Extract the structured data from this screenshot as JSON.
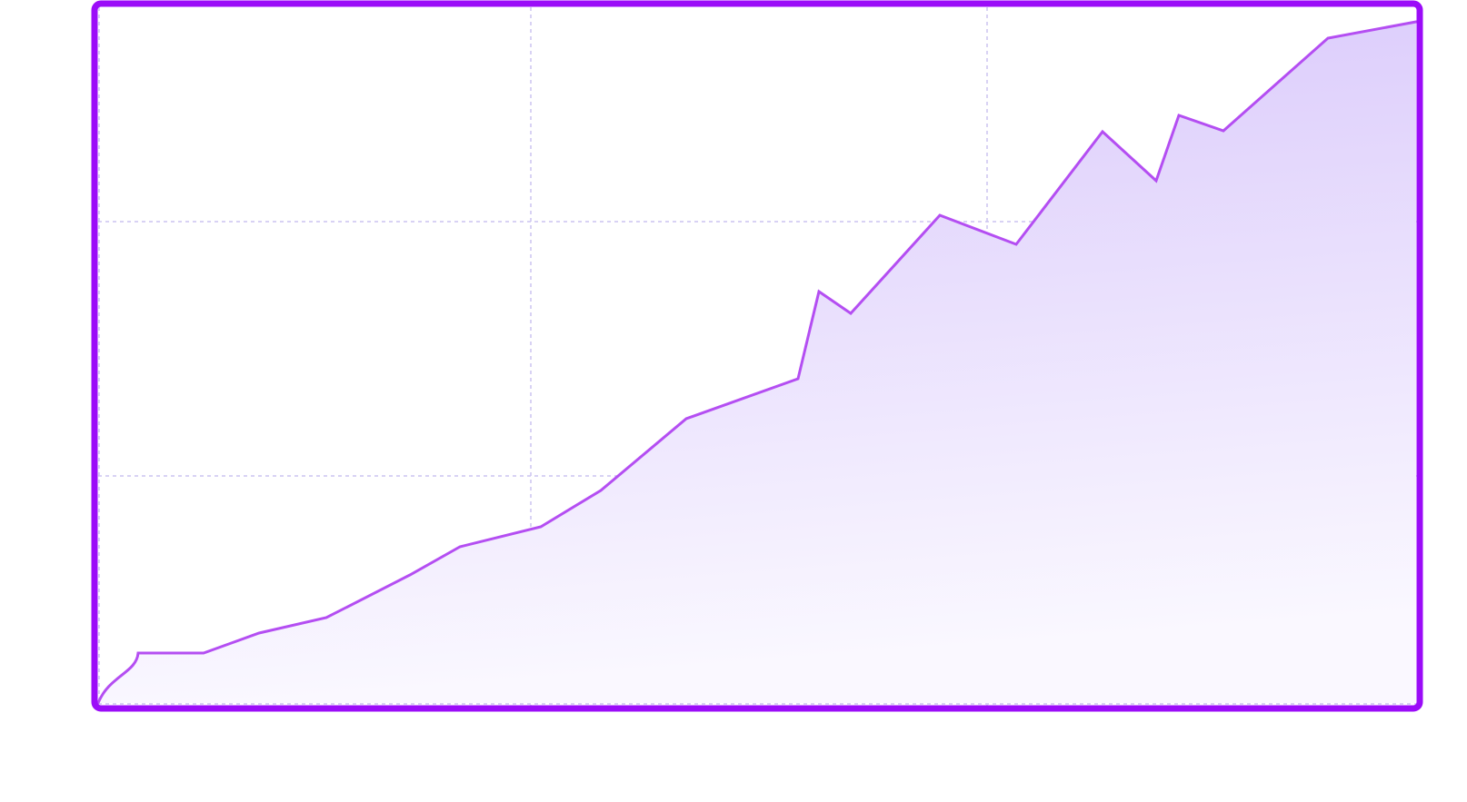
{
  "chart_data": {
    "type": "area",
    "title": "",
    "xlabel": "",
    "ylabel": "",
    "xlim": [
      0,
      1450
    ],
    "ylim": [
      0,
      750
    ],
    "grid": true,
    "gridlines_x": [
      476,
      978
    ],
    "gridlines_y": [
      250,
      530
    ],
    "series": [
      {
        "values": [
          {
            "x": 0,
            "y": 0
          },
          {
            "x": 44,
            "y": 55
          },
          {
            "x": 116,
            "y": 55
          },
          {
            "x": 177,
            "y": 77
          },
          {
            "x": 251,
            "y": 94
          },
          {
            "x": 343,
            "y": 141
          },
          {
            "x": 398,
            "y": 172
          },
          {
            "x": 487,
            "y": 194
          },
          {
            "x": 553,
            "y": 234
          },
          {
            "x": 647,
            "y": 313
          },
          {
            "x": 770,
            "y": 357
          },
          {
            "x": 793,
            "y": 453
          },
          {
            "x": 828,
            "y": 429
          },
          {
            "x": 926,
            "y": 537
          },
          {
            "x": 1010,
            "y": 505
          },
          {
            "x": 1105,
            "y": 629
          },
          {
            "x": 1164,
            "y": 575
          },
          {
            "x": 1189,
            "y": 647
          },
          {
            "x": 1238,
            "y": 630
          },
          {
            "x": 1353,
            "y": 732
          },
          {
            "x": 1450,
            "y": 750
          }
        ]
      }
    ],
    "colors": {
      "line": "#b44ef2",
      "fill_top": "#d9c8fb",
      "fill_bottom": "#faf8ff",
      "frame": "#9b0cf8",
      "grid": "#cbc4f0"
    }
  }
}
